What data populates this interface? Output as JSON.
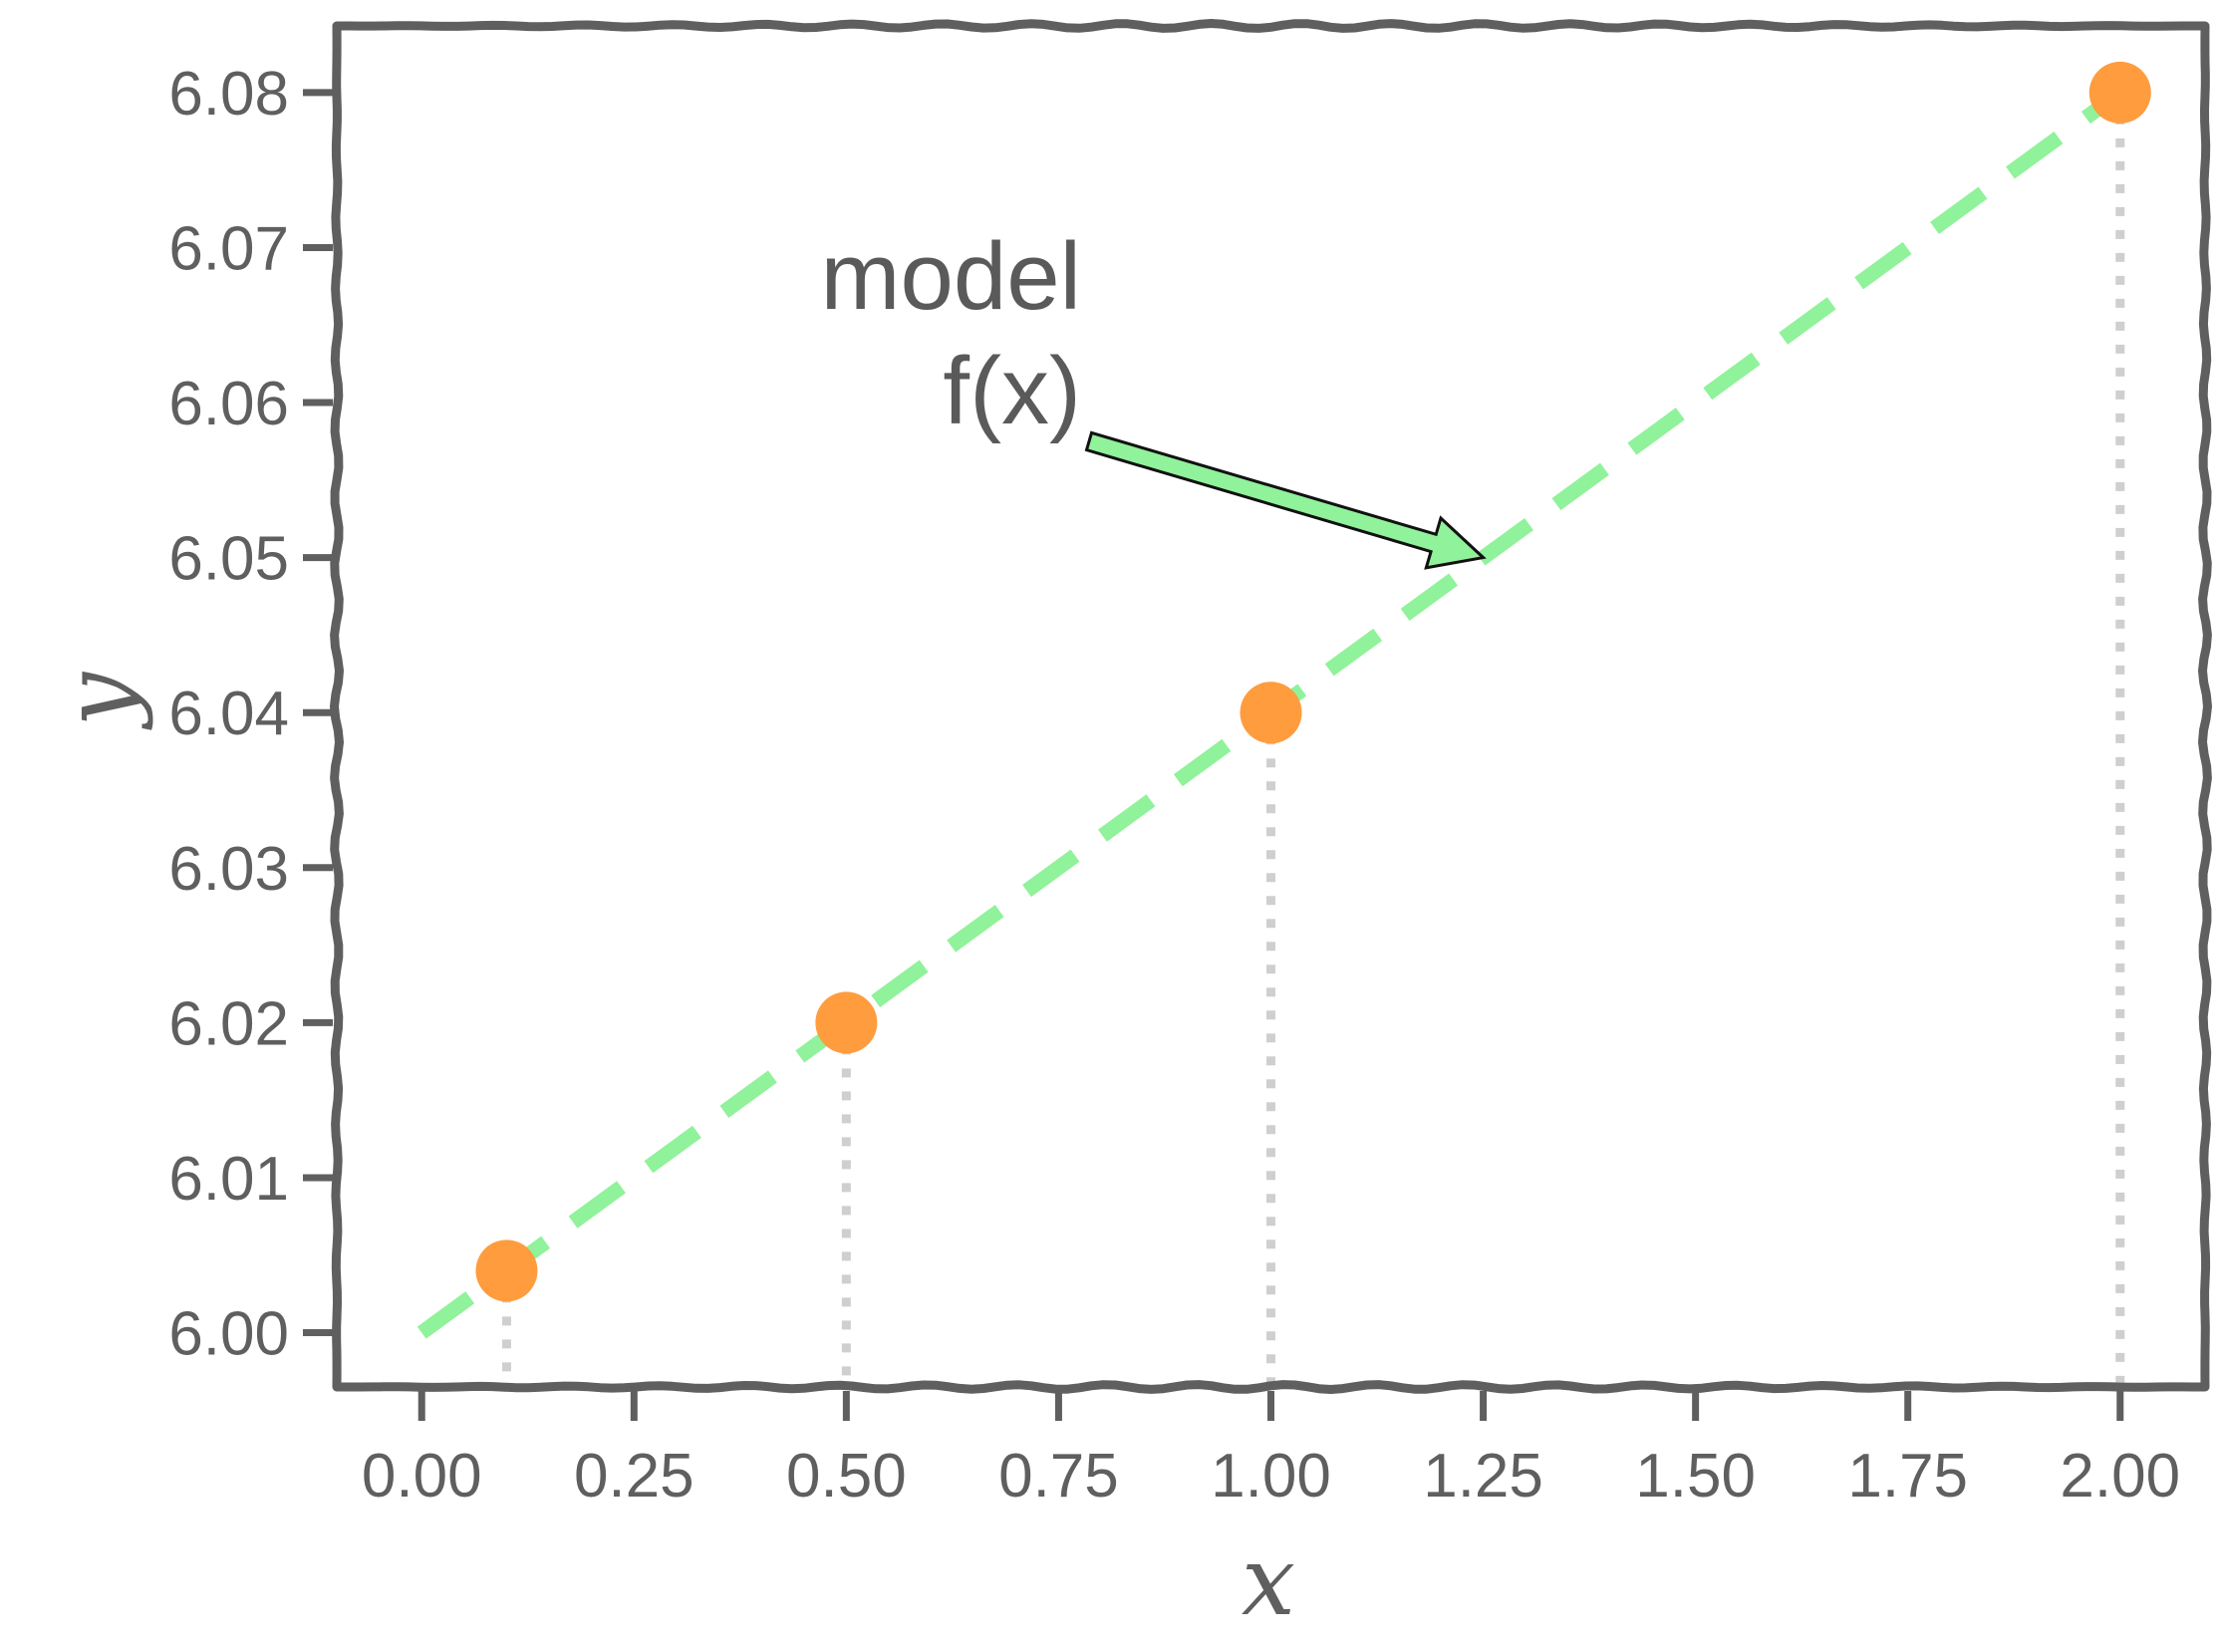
{
  "chart_data": {
    "type": "scatter",
    "xlabel": "x",
    "ylabel": "y",
    "xlim": [
      -0.1,
      2.1
    ],
    "ylim": [
      5.9965,
      6.0843
    ],
    "xticks": [
      "0.00",
      "0.25",
      "0.50",
      "0.75",
      "1.00",
      "1.25",
      "1.50",
      "1.75",
      "2.00"
    ],
    "yticks": [
      "6.00",
      "6.01",
      "6.02",
      "6.03",
      "6.04",
      "6.05",
      "6.06",
      "6.07",
      "6.08"
    ],
    "grid": false,
    "points": {
      "x": [
        0.1,
        0.5,
        1.0,
        2.0
      ],
      "y": [
        6.004,
        6.02,
        6.04,
        6.08
      ],
      "color": "#ff9c3e"
    },
    "model_line": {
      "x": [
        0.0,
        2.0
      ],
      "y": [
        6.0,
        6.08
      ],
      "style": "dashed",
      "color": "#90f29a"
    },
    "annotation": {
      "line1": "model",
      "line2": "f(x)",
      "arrow_target": {
        "x": 1.25,
        "y": 6.05
      },
      "arrow_color": "#90f29a"
    },
    "colors": {
      "frame": "#5f5f5f",
      "droplines": "#cfcfcf",
      "text": "#5f5f5f"
    }
  }
}
